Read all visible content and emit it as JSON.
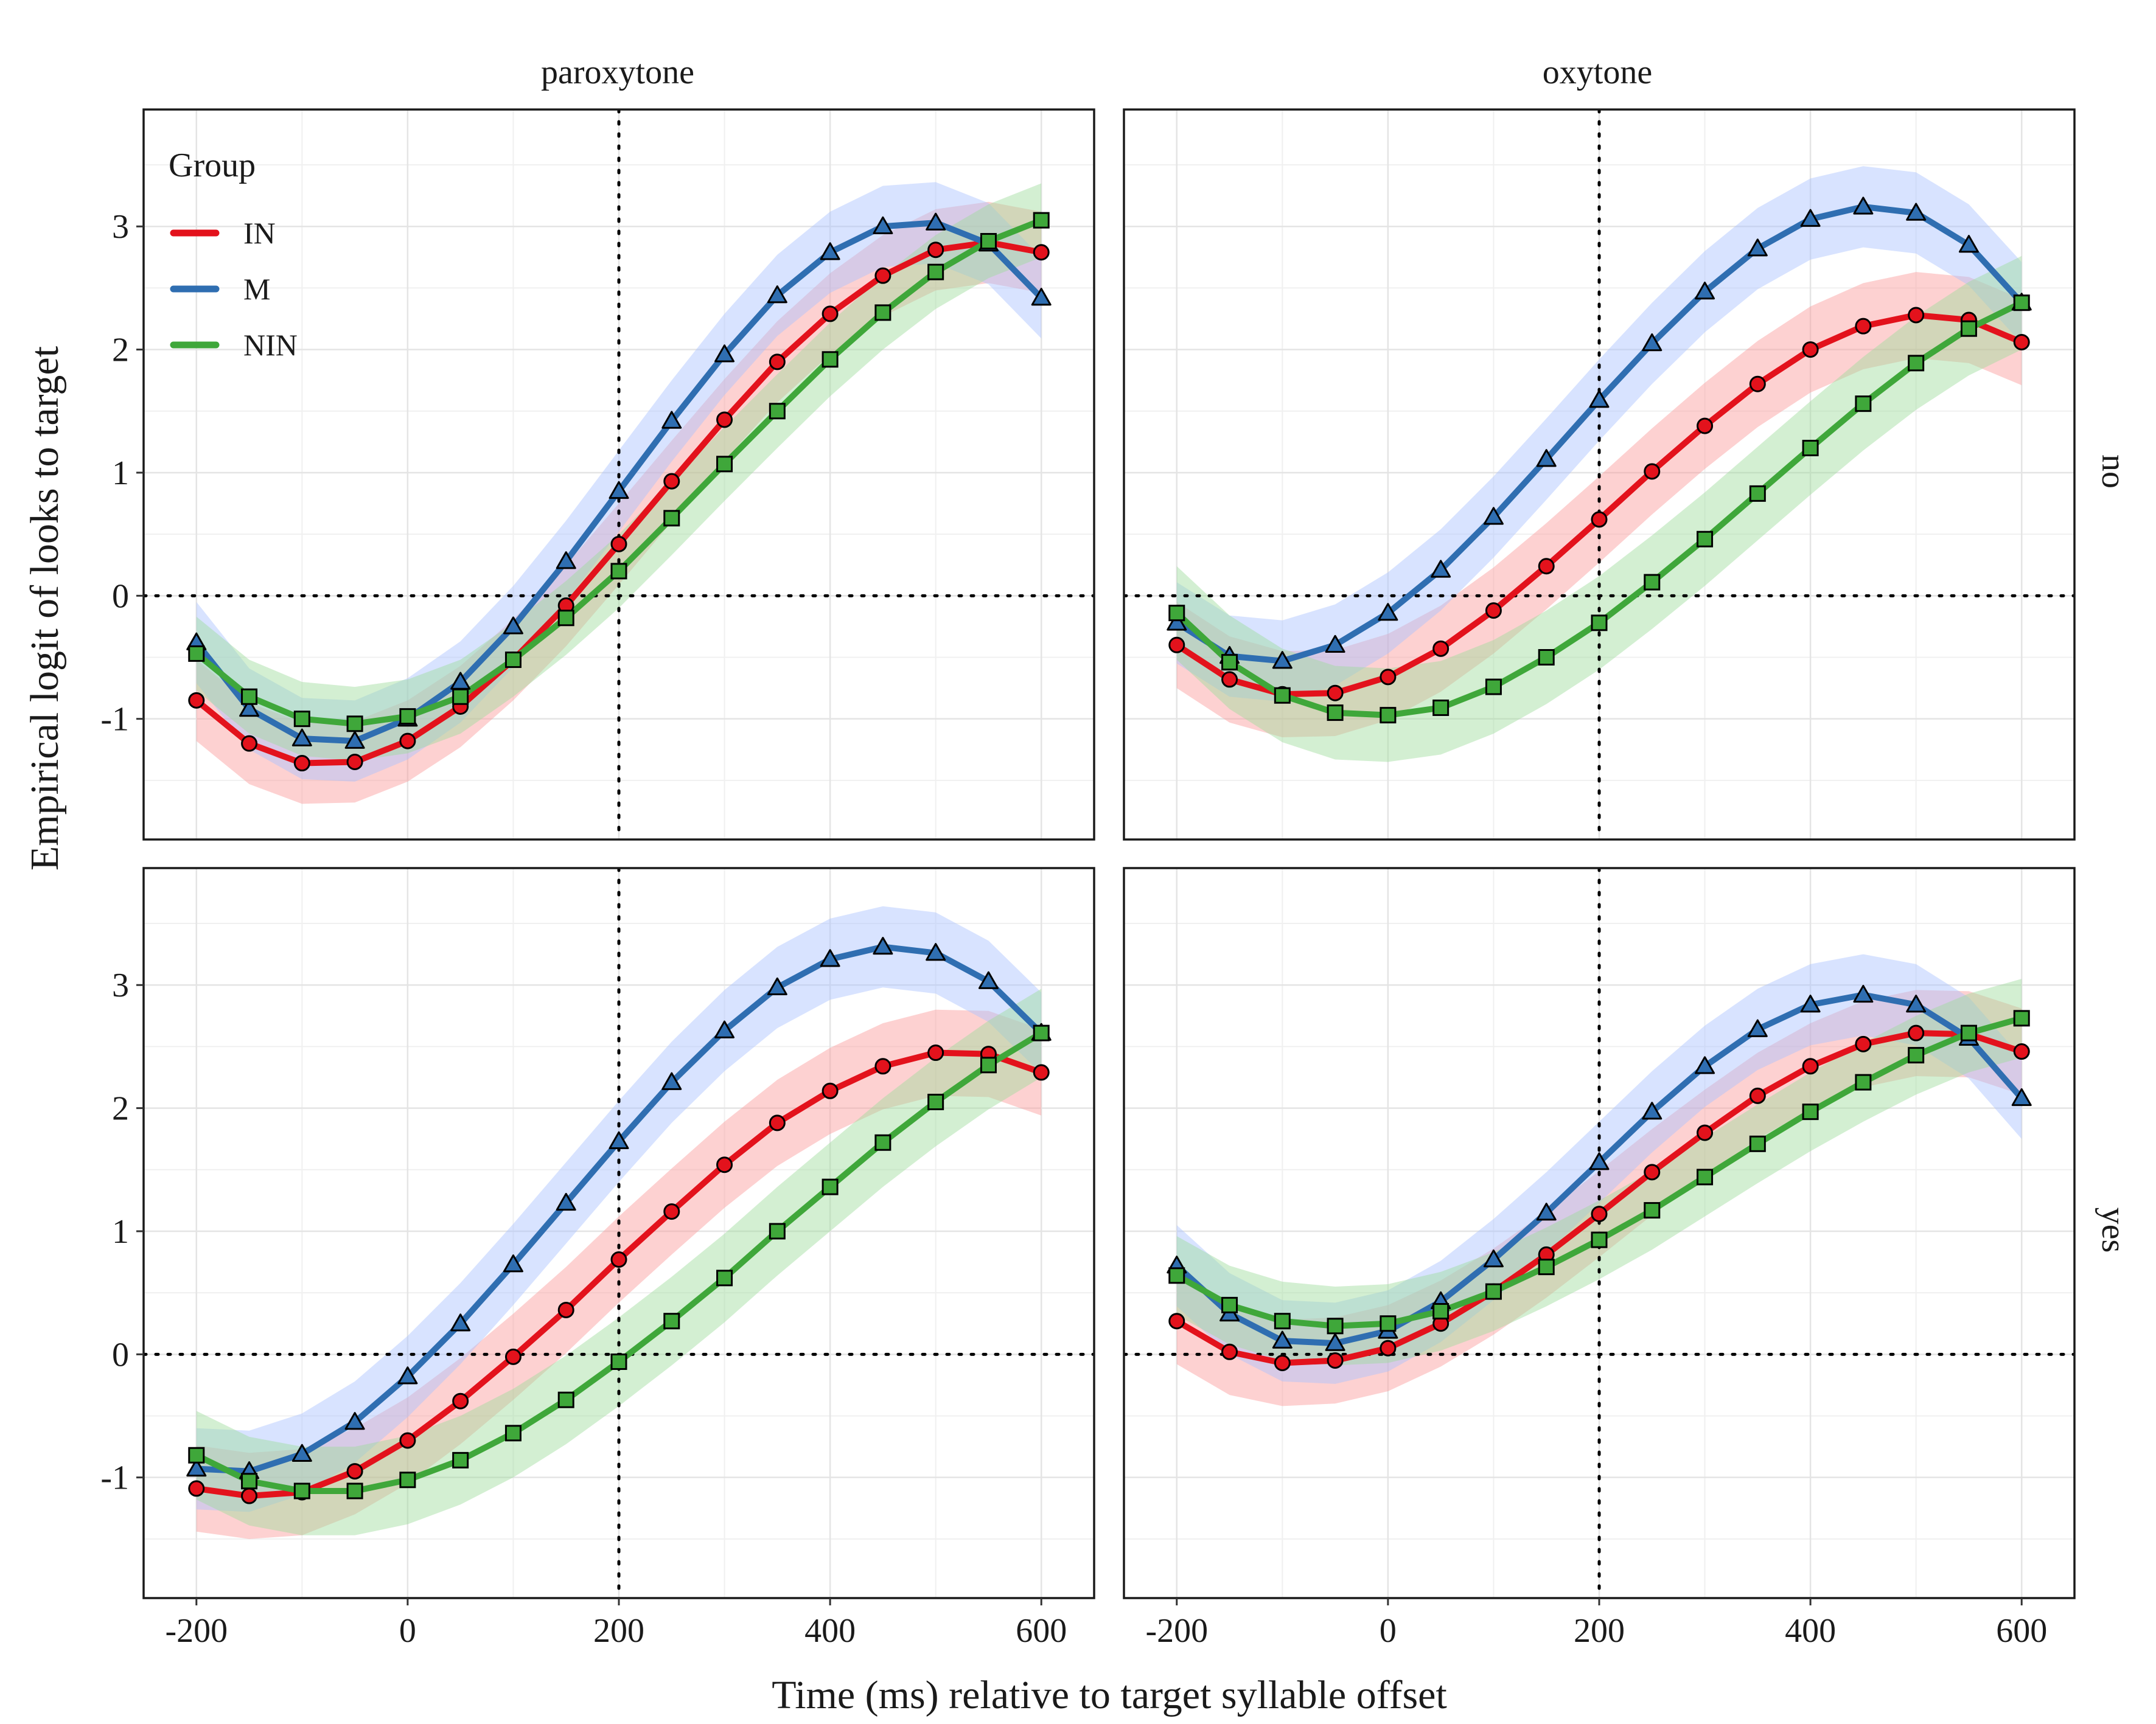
{
  "chart_data": {
    "type": "line",
    "xlabel": "Time (ms) relative to target syllable offset",
    "ylabel": "Empirical logit of looks to target",
    "xlim": [
      -250,
      650
    ],
    "ylim": [
      -1.98,
      3.95
    ],
    "x_ticks": [
      -200,
      0,
      200,
      400,
      600
    ],
    "x_tick_labels": [
      "-200",
      "0",
      "200",
      "400",
      "600"
    ],
    "y_ticks": [
      -1,
      0,
      1,
      2,
      3
    ],
    "y_tick_labels": [
      "-1",
      "0",
      "1",
      "2",
      "3"
    ],
    "grid": true,
    "reference_lines": {
      "x": 200,
      "y": 0,
      "style": "dotted"
    },
    "column_facets": [
      "paroxytone",
      "oxytone"
    ],
    "row_facets": [
      "no",
      "yes"
    ],
    "legend": {
      "title": "Group",
      "placement": "top-left inside first panel",
      "entries": [
        {
          "name": "IN",
          "color": "#e3121c",
          "marker": "circle"
        },
        {
          "name": "M",
          "color": "#2f6eb1",
          "marker": "triangle"
        },
        {
          "name": "NIN",
          "color": "#3fa73a",
          "marker": "square"
        }
      ]
    },
    "band_colors": {
      "IN": "#fb9a99",
      "M": "#a8c0ff",
      "NIN": "#9edb9c"
    },
    "x": [
      -200,
      -150,
      -100,
      -50,
      0,
      50,
      100,
      150,
      200,
      250,
      300,
      350,
      400,
      450,
      500,
      550,
      600
    ],
    "panels": [
      {
        "col": "paroxytone",
        "row": "no",
        "series": [
          {
            "name": "IN",
            "values": [
              -0.85,
              -1.2,
              -1.36,
              -1.35,
              -1.18,
              -0.9,
              -0.52,
              -0.08,
              0.42,
              0.93,
              1.43,
              1.9,
              2.29,
              2.6,
              2.81,
              2.87,
              2.79
            ],
            "band": 0.33
          },
          {
            "name": "M",
            "values": [
              -0.38,
              -0.92,
              -1.16,
              -1.18,
              -1.0,
              -0.7,
              -0.25,
              0.28,
              0.85,
              1.42,
              1.96,
              2.44,
              2.79,
              3.0,
              3.03,
              2.86,
              2.42
            ],
            "band": 0.33
          },
          {
            "name": "NIN",
            "values": [
              -0.47,
              -0.82,
              -1.0,
              -1.04,
              -0.98,
              -0.82,
              -0.52,
              -0.18,
              0.2,
              0.63,
              1.07,
              1.5,
              1.92,
              2.3,
              2.63,
              2.88,
              3.05
            ],
            "band": 0.3
          }
        ]
      },
      {
        "col": "oxytone",
        "row": "no",
        "series": [
          {
            "name": "IN",
            "values": [
              -0.4,
              -0.68,
              -0.8,
              -0.79,
              -0.66,
              -0.43,
              -0.12,
              0.24,
              0.62,
              1.01,
              1.38,
              1.72,
              2.0,
              2.19,
              2.28,
              2.24,
              2.06
            ],
            "band": 0.35
          },
          {
            "name": "M",
            "values": [
              -0.22,
              -0.49,
              -0.53,
              -0.4,
              -0.14,
              0.21,
              0.64,
              1.11,
              1.59,
              2.05,
              2.47,
              2.82,
              3.06,
              3.16,
              3.11,
              2.85,
              2.38
            ],
            "band": 0.33
          },
          {
            "name": "NIN",
            "values": [
              -0.14,
              -0.54,
              -0.81,
              -0.95,
              -0.97,
              -0.91,
              -0.74,
              -0.5,
              -0.22,
              0.11,
              0.46,
              0.83,
              1.2,
              1.56,
              1.89,
              2.17,
              2.38
            ],
            "band": 0.38
          }
        ]
      },
      {
        "col": "paroxytone",
        "row": "yes",
        "series": [
          {
            "name": "IN",
            "values": [
              -1.09,
              -1.15,
              -1.12,
              -0.95,
              -0.7,
              -0.38,
              -0.02,
              0.36,
              0.77,
              1.16,
              1.54,
              1.88,
              2.14,
              2.34,
              2.45,
              2.44,
              2.29
            ],
            "band": 0.35
          },
          {
            "name": "M",
            "values": [
              -0.93,
              -0.95,
              -0.81,
              -0.55,
              -0.18,
              0.25,
              0.73,
              1.23,
              1.73,
              2.21,
              2.63,
              2.98,
              3.21,
              3.31,
              3.26,
              3.03,
              2.61
            ],
            "band": 0.33
          },
          {
            "name": "NIN",
            "values": [
              -0.82,
              -1.03,
              -1.11,
              -1.11,
              -1.02,
              -0.86,
              -0.64,
              -0.37,
              -0.06,
              0.27,
              0.62,
              1.0,
              1.36,
              1.72,
              2.05,
              2.35,
              2.61
            ],
            "band": 0.36
          }
        ]
      },
      {
        "col": "oxytone",
        "row": "yes",
        "series": [
          {
            "name": "IN",
            "values": [
              0.27,
              0.02,
              -0.07,
              -0.05,
              0.05,
              0.25,
              0.51,
              0.81,
              1.14,
              1.48,
              1.8,
              2.1,
              2.34,
              2.52,
              2.61,
              2.6,
              2.46
            ],
            "band": 0.35
          },
          {
            "name": "M",
            "values": [
              0.72,
              0.33,
              0.11,
              0.09,
              0.19,
              0.43,
              0.77,
              1.15,
              1.56,
              1.97,
              2.34,
              2.64,
              2.84,
              2.92,
              2.84,
              2.57,
              2.08
            ],
            "band": 0.33
          },
          {
            "name": "NIN",
            "values": [
              0.64,
              0.4,
              0.27,
              0.23,
              0.25,
              0.35,
              0.51,
              0.71,
              0.93,
              1.17,
              1.44,
              1.71,
              1.97,
              2.21,
              2.43,
              2.61,
              2.73
            ],
            "band": 0.32
          }
        ]
      }
    ]
  }
}
